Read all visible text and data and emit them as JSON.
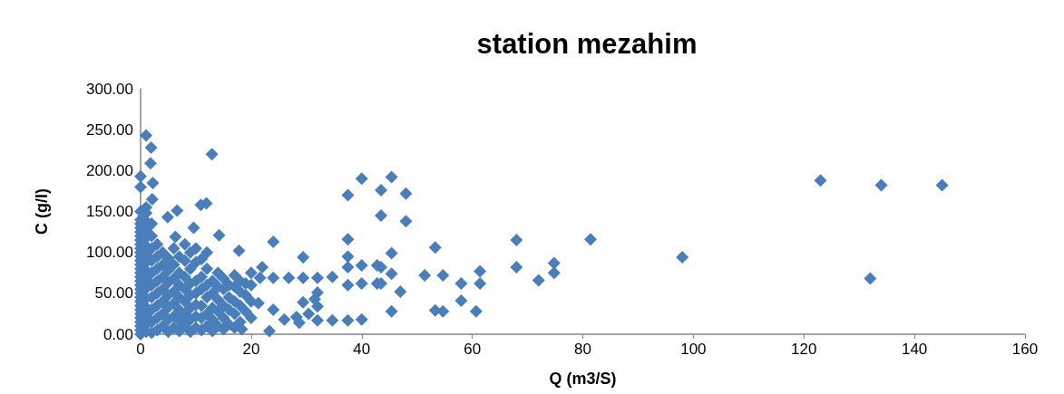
{
  "chart_data": {
    "type": "scatter",
    "title": "station mezahim",
    "xlabel": "Q (m3/S)",
    "ylabel": "C (g/l)",
    "marker": "diamond",
    "grid": false,
    "xlim": [
      0,
      160
    ],
    "xticks": [
      0,
      20,
      40,
      60,
      80,
      100,
      120,
      140,
      160
    ],
    "ylim": [
      0,
      300
    ],
    "yticks": [
      {
        "value": 0,
        "label": "0.00"
      },
      {
        "value": 50,
        "label": "50.00"
      },
      {
        "value": 100,
        "label": "100.00"
      },
      {
        "value": 150,
        "label": "150.00"
      },
      {
        "value": 200,
        "label": "200.00"
      },
      {
        "value": 250,
        "label": "250.00"
      },
      {
        "value": 300,
        "label": "300.00"
      }
    ],
    "series": [
      {
        "color": "#4a7ebb",
        "x": [
          123,
          134,
          145,
          132,
          98,
          45.4,
          48,
          48,
          43.5,
          43.5,
          45.4,
          43.5,
          45.4,
          43.5,
          47,
          45.4,
          53.3,
          51.4,
          54.7,
          58,
          61.4,
          61.4,
          58,
          53.3,
          54.7,
          60.7,
          68,
          68,
          72,
          74.8,
          74.8,
          81.4,
          1,
          1.9,
          1.8,
          12.9,
          0,
          2.2,
          0,
          2.1,
          37.5,
          40,
          10.9,
          11.9,
          4.9,
          6.6,
          9.6,
          14.2,
          6.3,
          24,
          37.5,
          17.8,
          29.4,
          37.5,
          37.5,
          40,
          42.8,
          34.7,
          37.5,
          40,
          42.8,
          32,
          32,
          32,
          29.4,
          29.4,
          28.2,
          26.8,
          24,
          21.6,
          22,
          24,
          23.3,
          18.3,
          21.3,
          32,
          34.7,
          37.5,
          40,
          26,
          28.7,
          30.4,
          31.5,
          0,
          0,
          0,
          0,
          0,
          0,
          0,
          0,
          0,
          0,
          0,
          0,
          0,
          0,
          0,
          0,
          0,
          0,
          0,
          0,
          0,
          0,
          0,
          0,
          0,
          0,
          0,
          0,
          0,
          0,
          1,
          1,
          1,
          1,
          1,
          1,
          1,
          1,
          1,
          1,
          1,
          1,
          1,
          1,
          1,
          1,
          2,
          2,
          2,
          2,
          2,
          2,
          2,
          2,
          2,
          2,
          3,
          3,
          3,
          3,
          3,
          3,
          3,
          3,
          4,
          4,
          4,
          4,
          4,
          4,
          4,
          5,
          5,
          5,
          5,
          5,
          5,
          5,
          6,
          6,
          6,
          6,
          6,
          6,
          6,
          7,
          7,
          7,
          7,
          7,
          7,
          7,
          8,
          8,
          8,
          8,
          8,
          8,
          8,
          9,
          9,
          9,
          9,
          9,
          9,
          9,
          10,
          10,
          10,
          10,
          10,
          10,
          10,
          11,
          11,
          11,
          11,
          11,
          11,
          12,
          12,
          12,
          12,
          12,
          12,
          13,
          13,
          13,
          13,
          13,
          14,
          14,
          14,
          14,
          14,
          15,
          15,
          15,
          15,
          15,
          16,
          16,
          16,
          16,
          17,
          17,
          17,
          17,
          17,
          18,
          18,
          18,
          18,
          19,
          19,
          19,
          20,
          20,
          20,
          20
        ],
        "values": [
          188,
          182,
          182,
          68,
          94,
          192,
          172,
          138,
          176,
          145,
          99,
          82,
          74,
          62,
          52,
          28,
          106,
          72,
          72,
          62,
          77,
          62,
          41,
          29,
          28,
          28,
          115,
          82,
          66,
          87,
          75,
          116,
          243,
          228,
          209,
          220,
          193,
          185,
          180,
          165,
          170,
          190,
          158,
          160,
          143,
          151,
          130,
          121,
          119,
          113,
          116,
          102,
          94,
          95,
          82,
          84,
          84,
          70,
          60,
          62,
          62,
          69,
          51,
          34,
          69,
          39,
          21,
          69,
          69,
          69,
          82,
          30,
          4,
          6,
          38,
          17,
          17,
          17,
          18,
          18,
          14,
          25,
          43,
          0,
          5,
          10,
          15,
          20,
          25,
          30,
          35,
          40,
          45,
          50,
          55,
          60,
          65,
          70,
          75,
          80,
          85,
          90,
          95,
          100,
          105,
          110,
          115,
          120,
          125,
          130,
          135,
          140,
          150,
          3,
          12,
          22,
          33,
          44,
          56,
          67,
          78,
          88,
          98,
          108,
          118,
          128,
          138,
          148,
          155,
          2,
          15,
          30,
          45,
          60,
          75,
          90,
          105,
          120,
          135,
          5,
          20,
          35,
          50,
          65,
          80,
          95,
          110,
          10,
          25,
          40,
          55,
          70,
          85,
          100,
          3,
          18,
          33,
          48,
          63,
          78,
          93,
          8,
          22,
          38,
          52,
          68,
          85,
          105,
          4,
          17,
          30,
          45,
          60,
          75,
          95,
          10,
          25,
          40,
          55,
          70,
          90,
          110,
          3,
          18,
          32,
          48,
          62,
          80,
          100,
          8,
          22,
          36,
          50,
          65,
          88,
          105,
          5,
          20,
          35,
          55,
          70,
          92,
          10,
          25,
          45,
          60,
          80,
          100,
          4,
          18,
          32,
          50,
          65,
          10,
          28,
          42,
          58,
          75,
          6,
          20,
          35,
          55,
          68,
          12,
          30,
          45,
          60,
          8,
          25,
          40,
          58,
          72,
          15,
          35,
          52,
          65,
          28,
          48,
          62,
          20,
          40,
          60,
          75
        ]
      }
    ]
  }
}
